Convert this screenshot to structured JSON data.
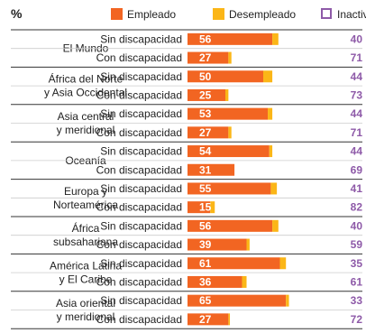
{
  "chart_data": {
    "type": "bar",
    "stacked": true,
    "orientation": "horizontal",
    "unit_label": "%",
    "legend": [
      {
        "key": "employed",
        "label": "Empleado",
        "color": "#f26522",
        "marker": "filled"
      },
      {
        "key": "unemployed",
        "label": "Desempleado",
        "color": "#fbb617",
        "marker": "filled"
      },
      {
        "key": "inactive",
        "label": "Inactivo",
        "color": "#8e5aa8",
        "marker": "outline"
      }
    ],
    "condition_labels": {
      "without": "Sin discapacidad",
      "with": "Con discapacidad"
    },
    "regions": [
      {
        "name": [
          "El Mundo"
        ],
        "rows": [
          {
            "condition": "without",
            "employed": 56,
            "unemployed": 4,
            "inactive": 40
          },
          {
            "condition": "with",
            "employed": 27,
            "unemployed": 2,
            "inactive": 71
          }
        ]
      },
      {
        "name": [
          "África del Norte",
          "y Asia Occidental"
        ],
        "rows": [
          {
            "condition": "without",
            "employed": 50,
            "unemployed": 6,
            "inactive": 44
          },
          {
            "condition": "with",
            "employed": 25,
            "unemployed": 2,
            "inactive": 73
          }
        ]
      },
      {
        "name": [
          "Asia central",
          "y meridional"
        ],
        "rows": [
          {
            "condition": "without",
            "employed": 53,
            "unemployed": 3,
            "inactive": 44
          },
          {
            "condition": "with",
            "employed": 27,
            "unemployed": 2,
            "inactive": 71
          }
        ]
      },
      {
        "name": [
          "Oceanía"
        ],
        "rows": [
          {
            "condition": "without",
            "employed": 54,
            "unemployed": 2,
            "inactive": 44
          },
          {
            "condition": "with",
            "employed": 31,
            "unemployed": 0,
            "inactive": 69
          }
        ]
      },
      {
        "name": [
          "Europa y",
          "Norteamérica"
        ],
        "rows": [
          {
            "condition": "without",
            "employed": 55,
            "unemployed": 4,
            "inactive": 41
          },
          {
            "condition": "with",
            "employed": 15,
            "unemployed": 3,
            "inactive": 82
          }
        ]
      },
      {
        "name": [
          "África",
          "subsahariana"
        ],
        "rows": [
          {
            "condition": "without",
            "employed": 56,
            "unemployed": 4,
            "inactive": 40
          },
          {
            "condition": "with",
            "employed": 39,
            "unemployed": 2,
            "inactive": 59
          }
        ]
      },
      {
        "name": [
          "América Latina",
          "y El Caribe"
        ],
        "rows": [
          {
            "condition": "without",
            "employed": 61,
            "unemployed": 4,
            "inactive": 35
          },
          {
            "condition": "with",
            "employed": 36,
            "unemployed": 3,
            "inactive": 61
          }
        ]
      },
      {
        "name": [
          "Asia oriental",
          "y meridional"
        ],
        "rows": [
          {
            "condition": "without",
            "employed": 65,
            "unemployed": 2,
            "inactive": 33
          },
          {
            "condition": "with",
            "employed": 27,
            "unemployed": 1,
            "inactive": 72
          }
        ]
      }
    ]
  }
}
